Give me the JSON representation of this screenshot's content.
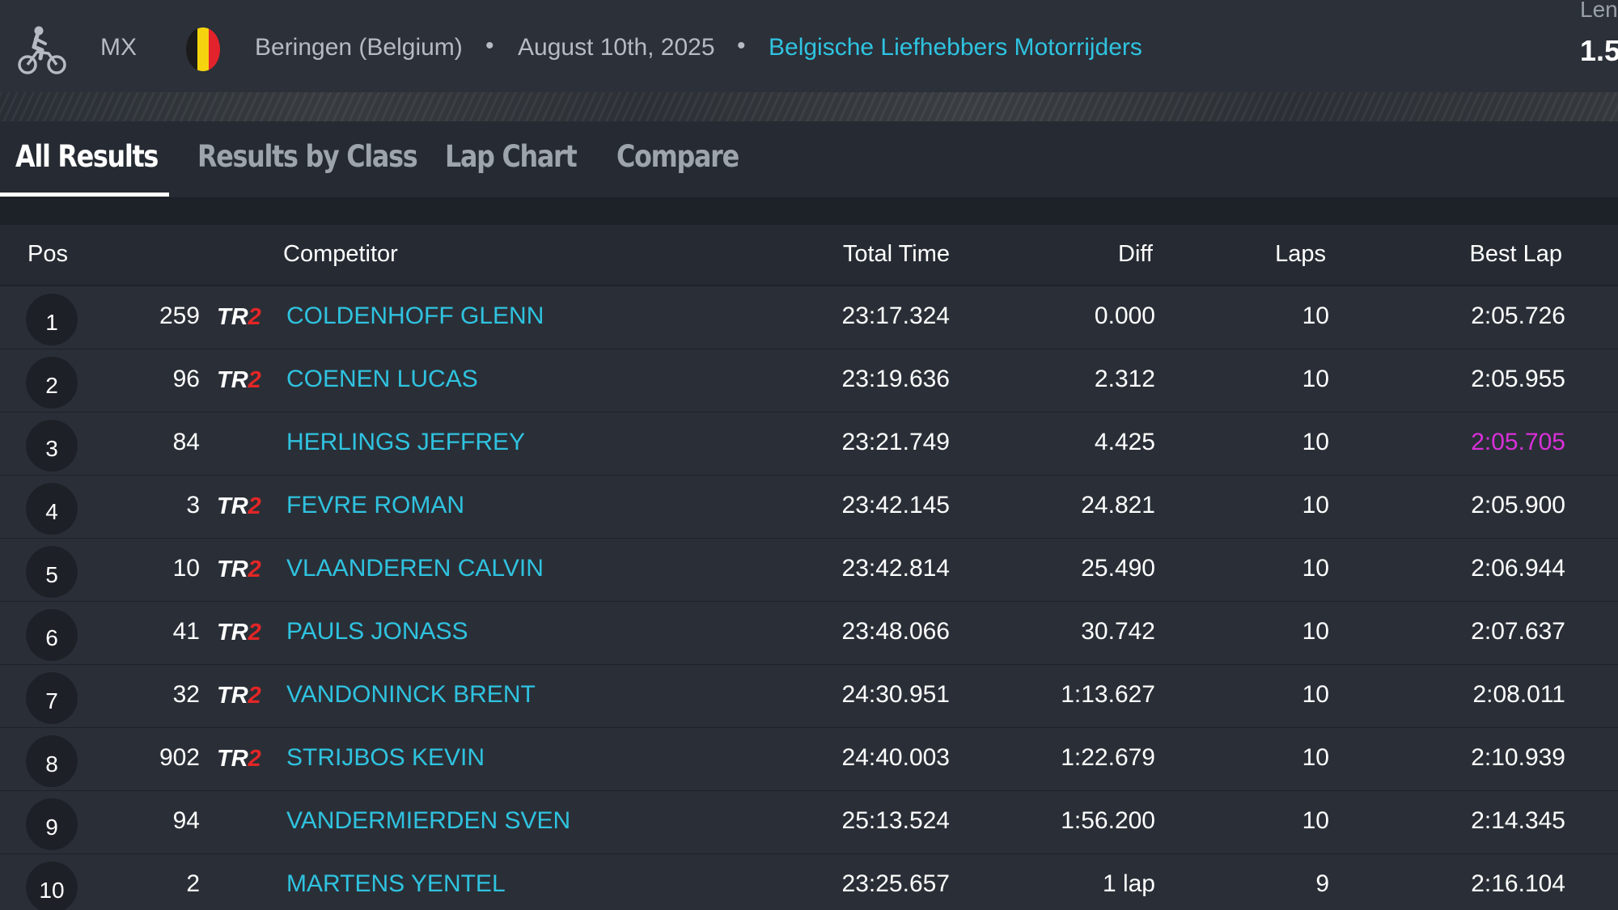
{
  "header": {
    "sport": "MX",
    "sport_icon": "motocross-rider-icon",
    "flag_colors": [
      "#1b1b1b",
      "#f5d40f",
      "#e3232b"
    ],
    "location": "Beringen (Belgium)",
    "date": "August 10th, 2025",
    "organizer": "Belgische Liefhebbers Motorrijders",
    "length_label": "Len",
    "length_value": "1.5"
  },
  "tabs": [
    {
      "label": "All Results",
      "active": true
    },
    {
      "label": "Results by Class",
      "active": false
    },
    {
      "label": "Lap Chart",
      "active": false
    },
    {
      "label": "Compare",
      "active": false
    }
  ],
  "columns": {
    "pos": "Pos",
    "competitor": "Competitor",
    "total_time": "Total Time",
    "diff": "Diff",
    "laps": "Laps",
    "best_lap": "Best Lap"
  },
  "rows": [
    {
      "pos": "1",
      "number": "259",
      "team": true,
      "name": "COLDENHOFF GLENN",
      "total_time": "23:17.324",
      "diff": "0.000",
      "laps": "10",
      "best_lap": "2:05.726",
      "fastest": false
    },
    {
      "pos": "2",
      "number": "96",
      "team": true,
      "name": "COENEN LUCAS",
      "total_time": "23:19.636",
      "diff": "2.312",
      "laps": "10",
      "best_lap": "2:05.955",
      "fastest": false
    },
    {
      "pos": "3",
      "number": "84",
      "team": false,
      "name": "HERLINGS JEFFREY",
      "total_time": "23:21.749",
      "diff": "4.425",
      "laps": "10",
      "best_lap": "2:05.705",
      "fastest": true
    },
    {
      "pos": "4",
      "number": "3",
      "team": true,
      "name": "FEVRE ROMAN",
      "total_time": "23:42.145",
      "diff": "24.821",
      "laps": "10",
      "best_lap": "2:05.900",
      "fastest": false
    },
    {
      "pos": "5",
      "number": "10",
      "team": true,
      "name": "VLAANDEREN CALVIN",
      "total_time": "23:42.814",
      "diff": "25.490",
      "laps": "10",
      "best_lap": "2:06.944",
      "fastest": false
    },
    {
      "pos": "6",
      "number": "41",
      "team": true,
      "name": "PAULS JONASS",
      "total_time": "23:48.066",
      "diff": "30.742",
      "laps": "10",
      "best_lap": "2:07.637",
      "fastest": false
    },
    {
      "pos": "7",
      "number": "32",
      "team": true,
      "name": "VANDONINCK BRENT",
      "total_time": "24:30.951",
      "diff": "1:13.627",
      "laps": "10",
      "best_lap": "2:08.011",
      "fastest": false
    },
    {
      "pos": "8",
      "number": "902",
      "team": true,
      "name": "STRIJBOS KEVIN",
      "total_time": "24:40.003",
      "diff": "1:22.679",
      "laps": "10",
      "best_lap": "2:10.939",
      "fastest": false
    },
    {
      "pos": "9",
      "number": "94",
      "team": false,
      "name": "VANDERMIERDEN SVEN",
      "total_time": "25:13.524",
      "diff": "1:56.200",
      "laps": "10",
      "best_lap": "2:14.345",
      "fastest": false
    },
    {
      "pos": "10",
      "number": "2",
      "team": false,
      "name": "MARTENS YENTEL",
      "total_time": "23:25.657",
      "diff": "1 lap",
      "laps": "9",
      "best_lap": "2:16.104",
      "fastest": false
    }
  ],
  "team_logo": {
    "text": "TR",
    "accent": "2",
    "accent_color": "#e32626"
  },
  "colors": {
    "link": "#2fc3e0",
    "fastest_lap": "#d930d9",
    "background": "#262b33"
  }
}
